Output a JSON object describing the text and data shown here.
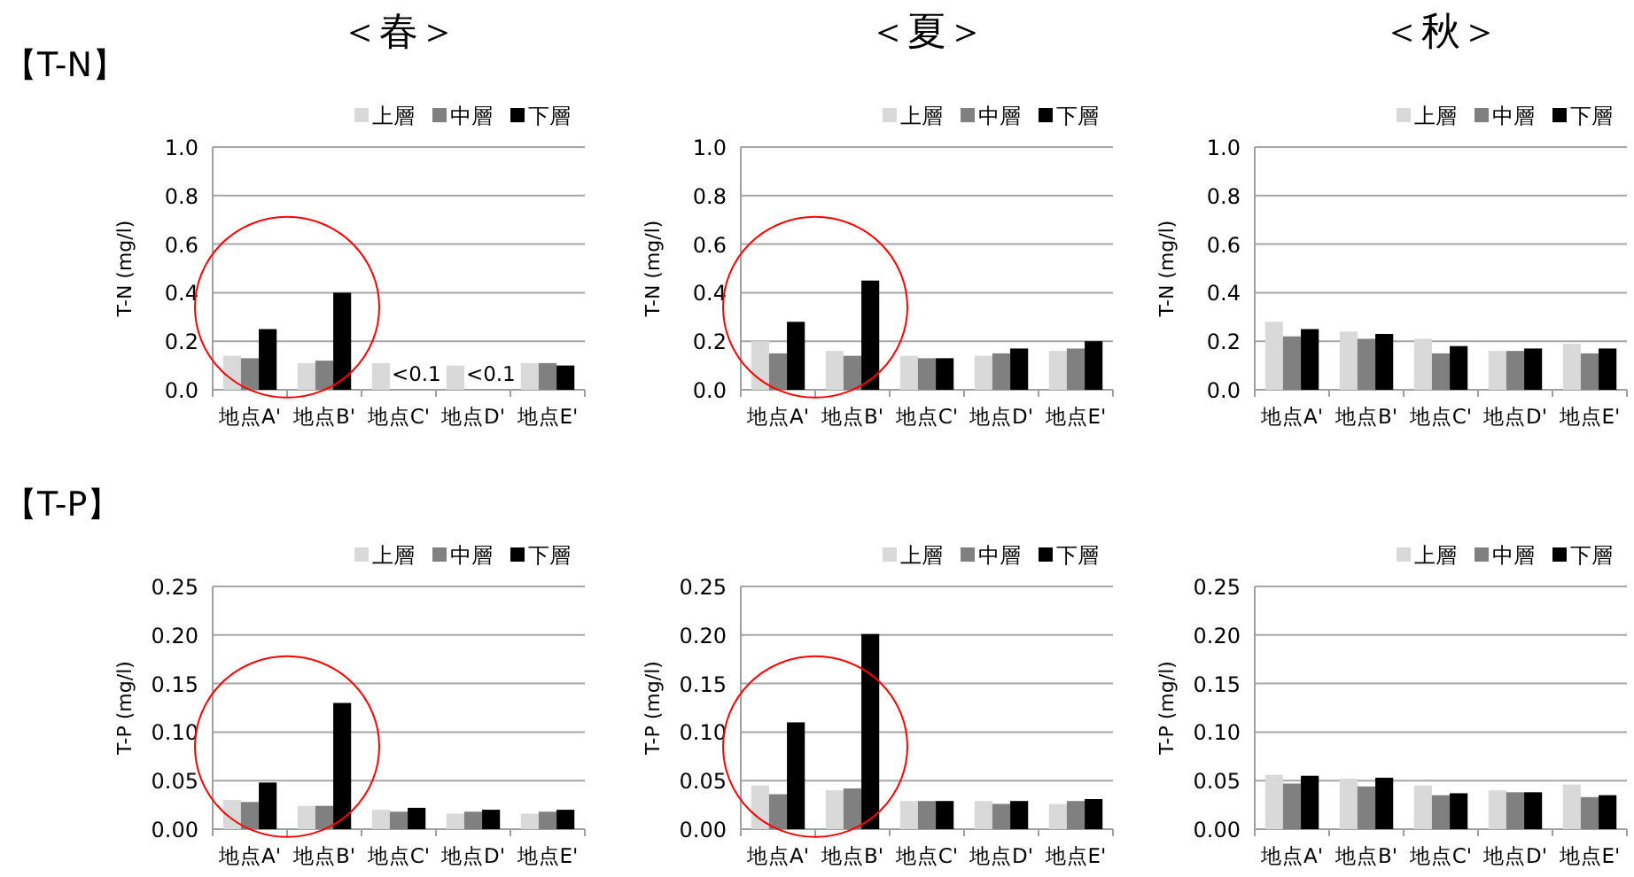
{
  "chart_data": [
    {
      "type": "bar",
      "title": "＜春＞",
      "subtitle": "【T-N】",
      "ylabel": "T-N (mg/l)",
      "categories": [
        "地点A'",
        "地点B'",
        "地点C'",
        "地点D'",
        "地点E'"
      ],
      "series": [
        {
          "name": "上層",
          "color": "#d9d9d9",
          "values": [
            0.14,
            0.11,
            0.11,
            0.1,
            0.11
          ]
        },
        {
          "name": "中層",
          "color": "#808080",
          "values": [
            0.13,
            0.12,
            null,
            null,
            0.11
          ],
          "value_labels": [
            null,
            null,
            "<0.1",
            "<0.1",
            null
          ]
        },
        {
          "name": "下層",
          "color": "#000000",
          "values": [
            0.25,
            0.4,
            null,
            null,
            0.1
          ]
        }
      ],
      "ylim": [
        0,
        1
      ],
      "yticks": [
        {
          "value": 0,
          "label": "0.0"
        },
        {
          "value": 0.2,
          "label": "0.2"
        },
        {
          "value": 0.4,
          "label": "0.4"
        },
        {
          "value": 0.6,
          "label": "0.6"
        },
        {
          "value": 0.8,
          "label": "0.8"
        },
        {
          "value": 1,
          "label": "1.0"
        }
      ],
      "grid": "y",
      "legend": "top right"
    },
    {
      "type": "bar",
      "title": "＜夏＞",
      "ylabel": "T-N (mg/l)",
      "categories": [
        "地点A'",
        "地点B'",
        "地点C'",
        "地点D'",
        "地点E'"
      ],
      "series": [
        {
          "name": "上層",
          "color": "#d9d9d9",
          "values": [
            0.2,
            0.16,
            0.14,
            0.14,
            0.16
          ]
        },
        {
          "name": "中層",
          "color": "#808080",
          "values": [
            0.15,
            0.14,
            0.13,
            0.15,
            0.17
          ]
        },
        {
          "name": "下層",
          "color": "#000000",
          "values": [
            0.28,
            0.45,
            0.13,
            0.17,
            0.2
          ]
        }
      ],
      "ylim": [
        0,
        1
      ],
      "yticks": [
        {
          "value": 0,
          "label": "0.0"
        },
        {
          "value": 0.2,
          "label": "0.2"
        },
        {
          "value": 0.4,
          "label": "0.4"
        },
        {
          "value": 0.6,
          "label": "0.6"
        },
        {
          "value": 0.8,
          "label": "0.8"
        },
        {
          "value": 1,
          "label": "1.0"
        }
      ],
      "grid": "y",
      "legend": "top right"
    },
    {
      "type": "bar",
      "title": "＜秋＞",
      "ylabel": "T-N (mg/l)",
      "categories": [
        "地点A'",
        "地点B'",
        "地点C'",
        "地点D'",
        "地点E'"
      ],
      "series": [
        {
          "name": "上層",
          "color": "#d9d9d9",
          "values": [
            0.28,
            0.24,
            0.21,
            0.16,
            0.19
          ]
        },
        {
          "name": "中層",
          "color": "#808080",
          "values": [
            0.22,
            0.21,
            0.15,
            0.16,
            0.15
          ]
        },
        {
          "name": "下層",
          "color": "#000000",
          "values": [
            0.25,
            0.23,
            0.18,
            0.17,
            0.17
          ]
        }
      ],
      "ylim": [
        0,
        1
      ],
      "yticks": [
        {
          "value": 0,
          "label": "0.0"
        },
        {
          "value": 0.2,
          "label": "0.2"
        },
        {
          "value": 0.4,
          "label": "0.4"
        },
        {
          "value": 0.6,
          "label": "0.6"
        },
        {
          "value": 0.8,
          "label": "0.8"
        },
        {
          "value": 1,
          "label": "1.0"
        }
      ],
      "grid": "y",
      "legend": "top right"
    },
    {
      "type": "bar",
      "subtitle": "【T-P】",
      "ylabel": "T-P (mg/l)",
      "categories": [
        "地点A'",
        "地点B'",
        "地点C'",
        "地点D'",
        "地点E'"
      ],
      "series": [
        {
          "name": "上層",
          "color": "#d9d9d9",
          "values": [
            0.03,
            0.024,
            0.02,
            0.016,
            0.016
          ]
        },
        {
          "name": "中層",
          "color": "#808080",
          "values": [
            0.028,
            0.024,
            0.018,
            0.018,
            0.018
          ]
        },
        {
          "name": "下層",
          "color": "#000000",
          "values": [
            0.048,
            0.13,
            0.022,
            0.02,
            0.02
          ]
        }
      ],
      "ylim": [
        0,
        0.25
      ],
      "yticks": [
        {
          "value": 0,
          "label": "0.00"
        },
        {
          "value": 0.05,
          "label": "0.05"
        },
        {
          "value": 0.1,
          "label": "0.10"
        },
        {
          "value": 0.15,
          "label": "0.15"
        },
        {
          "value": 0.2,
          "label": "0.20"
        },
        {
          "value": 0.25,
          "label": "0.25"
        }
      ],
      "grid": "y",
      "legend": "top right"
    },
    {
      "type": "bar",
      "ylabel": "T-P (mg/l)",
      "categories": [
        "地点A'",
        "地点B'",
        "地点C'",
        "地点D'",
        "地点E'"
      ],
      "series": [
        {
          "name": "上層",
          "color": "#d9d9d9",
          "values": [
            0.045,
            0.04,
            0.029,
            0.029,
            0.026
          ]
        },
        {
          "name": "中層",
          "color": "#808080",
          "values": [
            0.036,
            0.042,
            0.029,
            0.026,
            0.029
          ]
        },
        {
          "name": "下層",
          "color": "#000000",
          "values": [
            0.11,
            0.201,
            0.029,
            0.029,
            0.031
          ]
        }
      ],
      "ylim": [
        0,
        0.25
      ],
      "yticks": [
        {
          "value": 0,
          "label": "0.00"
        },
        {
          "value": 0.05,
          "label": "0.05"
        },
        {
          "value": 0.1,
          "label": "0.10"
        },
        {
          "value": 0.15,
          "label": "0.15"
        },
        {
          "value": 0.2,
          "label": "0.20"
        },
        {
          "value": 0.25,
          "label": "0.25"
        }
      ],
      "grid": "y",
      "legend": "top right"
    },
    {
      "type": "bar",
      "ylabel": "T-P (mg/l)",
      "categories": [
        "地点A'",
        "地点B'",
        "地点C'",
        "地点D'",
        "地点E'"
      ],
      "series": [
        {
          "name": "上層",
          "color": "#d9d9d9",
          "values": [
            0.056,
            0.052,
            0.045,
            0.04,
            0.046
          ]
        },
        {
          "name": "中層",
          "color": "#808080",
          "values": [
            0.047,
            0.044,
            0.035,
            0.038,
            0.033
          ]
        },
        {
          "name": "下層",
          "color": "#000000",
          "values": [
            0.055,
            0.053,
            0.037,
            0.038,
            0.035
          ]
        }
      ],
      "ylim": [
        0,
        0.25
      ],
      "yticks": [
        {
          "value": 0,
          "label": "0.00"
        },
        {
          "value": 0.05,
          "label": "0.05"
        },
        {
          "value": 0.1,
          "label": "0.10"
        },
        {
          "value": 0.15,
          "label": "0.15"
        },
        {
          "value": 0.2,
          "label": "0.20"
        },
        {
          "value": 0.25,
          "label": "0.25"
        }
      ],
      "grid": "y",
      "legend": "top right"
    }
  ]
}
